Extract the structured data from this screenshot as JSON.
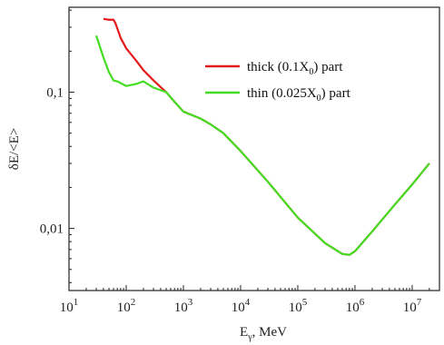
{
  "chart_data": {
    "type": "line",
    "title": "",
    "xlabel": {
      "main": "E",
      "sub": "γ",
      "tail": ", MeV"
    },
    "ylabel": "δE/<E>",
    "xscale": "log",
    "yscale": "log",
    "xlim": [
      10,
      30000000
    ],
    "ylim": [
      0.0035,
      0.42
    ],
    "xticks": [
      {
        "value": 10,
        "base": "10",
        "exp": "1"
      },
      {
        "value": 100,
        "base": "10",
        "exp": "2"
      },
      {
        "value": 1000,
        "base": "10",
        "exp": "3"
      },
      {
        "value": 10000,
        "base": "10",
        "exp": "4"
      },
      {
        "value": 100000,
        "base": "10",
        "exp": "5"
      },
      {
        "value": 1000000,
        "base": "10",
        "exp": "6"
      },
      {
        "value": 10000000,
        "base": "10",
        "exp": "7"
      }
    ],
    "yticks": [
      {
        "value": 0.1,
        "label": "0,1"
      },
      {
        "value": 0.01,
        "label": "0,01"
      }
    ],
    "legend_position": "top-right",
    "series": [
      {
        "label": {
          "pre": "thick (0.1X",
          "sub": "0",
          "post": ") part"
        },
        "color": "#e41a1c",
        "x": [
          40,
          50,
          60,
          65,
          80,
          100,
          150,
          200,
          300,
          500,
          700,
          1000,
          2000,
          3000,
          5000,
          10000,
          30000,
          100000,
          300000,
          600000,
          800000,
          1000000,
          2000000,
          5000000,
          10000000,
          20000000
        ],
        "y": [
          0.345,
          0.34,
          0.34,
          0.32,
          0.25,
          0.21,
          0.17,
          0.145,
          0.122,
          0.1,
          0.085,
          0.072,
          0.064,
          0.058,
          0.05,
          0.037,
          0.022,
          0.012,
          0.0078,
          0.0065,
          0.0064,
          0.0068,
          0.0095,
          0.015,
          0.021,
          0.03
        ]
      },
      {
        "label": {
          "pre": "thin (0.025X",
          "sub": "0",
          "post": ") part"
        },
        "color": "#44dd22",
        "x": [
          30,
          40,
          50,
          60,
          70,
          100,
          150,
          200,
          300,
          500,
          700,
          1000,
          2000,
          3000,
          5000,
          10000,
          30000,
          100000,
          300000,
          600000,
          800000,
          1000000,
          2000000,
          5000000,
          10000000,
          20000000
        ],
        "y": [
          0.26,
          0.18,
          0.14,
          0.122,
          0.12,
          0.111,
          0.115,
          0.12,
          0.108,
          0.1,
          0.085,
          0.072,
          0.064,
          0.058,
          0.05,
          0.037,
          0.022,
          0.012,
          0.0078,
          0.0065,
          0.0064,
          0.0068,
          0.0095,
          0.015,
          0.021,
          0.03
        ]
      }
    ]
  }
}
